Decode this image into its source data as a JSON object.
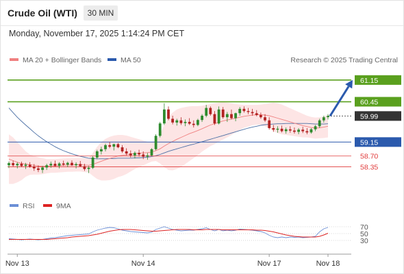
{
  "header": {
    "title": "Crude Oil (WTI)",
    "timeframe": "30 MIN",
    "datetime": "Monday, November 17, 2025 1:14:24 PM CET"
  },
  "legend": {
    "ma20": "MA 20 + Bollinger Bands",
    "ma50": "MA 50",
    "credit": "Research © 2025 Trading Central"
  },
  "colors": {
    "resistance": "#5aa01e",
    "pivot": "#2b5aad",
    "support": "#e03a3a",
    "current": "#333333",
    "ma20": "#f08080",
    "ma50": "#4a6fa5",
    "band": "#fde0e0",
    "up": "#2e8b2e",
    "down": "#b22222",
    "arrow": "#2b5aad",
    "rsi": "#6b8fd6",
    "rsi_ma": "#dd2222"
  },
  "chart_data": [
    {
      "type": "candlestick",
      "title": "Crude Oil (WTI)",
      "timeframe": "30 MIN",
      "ylim": [
        57.7,
        61.5
      ],
      "x_labels": [
        "Nov 13",
        "Nov 14",
        "Nov 17",
        "Nov 18"
      ],
      "levels": [
        {
          "value": 61.15,
          "label": "61.15",
          "kind": "resistance"
        },
        {
          "value": 60.45,
          "label": "60.45",
          "kind": "resistance"
        },
        {
          "value": 59.99,
          "label": "59.99",
          "kind": "current"
        },
        {
          "value": 59.15,
          "label": "59.15",
          "kind": "pivot"
        },
        {
          "value": 58.7,
          "label": "58.70",
          "kind": "support"
        },
        {
          "value": 58.35,
          "label": "58.35",
          "kind": "support"
        }
      ],
      "target_arrow": {
        "from": 59.99,
        "to": 61.15
      },
      "candles": [
        [
          58.4,
          58.52,
          58.31,
          58.47
        ],
        [
          58.47,
          58.55,
          58.36,
          58.4
        ],
        [
          58.4,
          58.5,
          58.3,
          58.45
        ],
        [
          58.45,
          58.52,
          58.34,
          58.38
        ],
        [
          58.38,
          58.48,
          58.28,
          58.42
        ],
        [
          58.42,
          58.5,
          58.32,
          58.36
        ],
        [
          58.36,
          58.44,
          58.22,
          58.3
        ],
        [
          58.3,
          58.4,
          58.18,
          58.25
        ],
        [
          58.25,
          58.38,
          58.15,
          58.33
        ],
        [
          58.33,
          58.45,
          58.25,
          58.4
        ],
        [
          58.4,
          58.52,
          58.32,
          58.45
        ],
        [
          58.45,
          58.55,
          58.36,
          58.38
        ],
        [
          58.38,
          58.5,
          58.3,
          58.46
        ],
        [
          58.46,
          58.55,
          58.38,
          58.42
        ],
        [
          58.42,
          58.52,
          58.34,
          58.48
        ],
        [
          58.48,
          58.56,
          58.38,
          58.4
        ],
        [
          58.4,
          58.5,
          58.3,
          58.44
        ],
        [
          58.44,
          58.54,
          58.36,
          58.37
        ],
        [
          58.37,
          58.45,
          58.22,
          58.28
        ],
        [
          58.28,
          58.38,
          58.15,
          58.32
        ],
        [
          58.32,
          58.7,
          58.28,
          58.65
        ],
        [
          58.65,
          58.9,
          58.6,
          58.85
        ],
        [
          58.85,
          59.0,
          58.75,
          58.92
        ],
        [
          58.92,
          59.1,
          58.85,
          59.05
        ],
        [
          59.05,
          59.15,
          58.95,
          59.0
        ],
        [
          59.0,
          59.1,
          58.88,
          59.08
        ],
        [
          59.08,
          59.12,
          58.95,
          58.98
        ],
        [
          58.98,
          59.05,
          58.8,
          58.85
        ],
        [
          58.85,
          58.95,
          58.72,
          58.78
        ],
        [
          58.78,
          58.88,
          58.65,
          58.72
        ],
        [
          58.72,
          58.85,
          58.62,
          58.8
        ],
        [
          58.8,
          58.9,
          58.68,
          58.75
        ],
        [
          58.75,
          58.85,
          58.6,
          58.68
        ],
        [
          58.68,
          58.8,
          58.58,
          58.72
        ],
        [
          58.72,
          58.95,
          58.7,
          58.92
        ],
        [
          58.92,
          59.4,
          58.88,
          59.35
        ],
        [
          59.35,
          59.8,
          59.3,
          59.75
        ],
        [
          59.75,
          60.4,
          59.7,
          60.2
        ],
        [
          60.2,
          60.3,
          59.85,
          59.9
        ],
        [
          59.9,
          60.0,
          59.72,
          59.78
        ],
        [
          59.78,
          59.9,
          59.68,
          59.85
        ],
        [
          59.85,
          59.95,
          59.7,
          59.76
        ],
        [
          59.76,
          59.88,
          59.66,
          59.8
        ],
        [
          59.8,
          59.92,
          59.7,
          59.74
        ],
        [
          59.74,
          59.85,
          59.62,
          59.7
        ],
        [
          59.7,
          59.9,
          59.66,
          59.86
        ],
        [
          59.86,
          60.05,
          59.8,
          60.0
        ],
        [
          60.0,
          60.35,
          59.95,
          60.25
        ],
        [
          60.25,
          60.3,
          60.0,
          60.05
        ],
        [
          60.05,
          60.15,
          59.7,
          59.75
        ],
        [
          59.75,
          60.3,
          59.72,
          60.2
        ],
        [
          60.2,
          60.28,
          59.9,
          59.95
        ],
        [
          59.95,
          60.12,
          59.8,
          60.05
        ],
        [
          60.05,
          60.2,
          59.88,
          59.92
        ],
        [
          59.92,
          60.1,
          59.82,
          60.08
        ],
        [
          60.08,
          60.28,
          60.0,
          60.22
        ],
        [
          60.22,
          60.3,
          60.1,
          60.15
        ],
        [
          60.15,
          60.25,
          60.05,
          60.12
        ],
        [
          60.12,
          60.22,
          60.0,
          60.08
        ],
        [
          60.08,
          60.18,
          59.98,
          60.02
        ],
        [
          60.02,
          60.1,
          59.9,
          59.95
        ],
        [
          59.95,
          60.05,
          59.8,
          59.85
        ],
        [
          59.85,
          59.95,
          59.55,
          59.6
        ],
        [
          59.6,
          59.7,
          59.48,
          59.55
        ],
        [
          59.55,
          59.66,
          59.45,
          59.58
        ],
        [
          59.58,
          59.68,
          59.46,
          59.5
        ],
        [
          59.5,
          59.62,
          59.42,
          59.56
        ],
        [
          59.56,
          59.66,
          59.45,
          59.52
        ],
        [
          59.52,
          59.62,
          59.42,
          59.48
        ],
        [
          59.48,
          59.6,
          59.4,
          59.55
        ],
        [
          59.55,
          59.64,
          59.44,
          59.5
        ],
        [
          59.5,
          59.6,
          59.4,
          59.46
        ],
        [
          59.46,
          59.6,
          59.42,
          59.56
        ],
        [
          59.56,
          59.7,
          59.5,
          59.66
        ],
        [
          59.66,
          59.9,
          59.6,
          59.85
        ],
        [
          59.85,
          60.0,
          59.78,
          59.95
        ],
        [
          59.95,
          60.05,
          59.88,
          59.99
        ]
      ],
      "ma20": [
        58.6,
        58.55,
        58.5,
        58.46,
        58.44,
        58.42,
        58.4,
        58.38,
        58.37,
        58.37,
        58.38,
        58.38,
        58.39,
        58.4,
        58.41,
        58.41,
        58.42,
        58.42,
        58.41,
        58.4,
        58.43,
        58.48,
        58.53,
        58.58,
        58.62,
        58.66,
        58.7,
        58.72,
        58.74,
        58.76,
        58.78,
        58.79,
        58.8,
        58.81,
        58.83,
        58.87,
        58.93,
        59.02,
        59.1,
        59.17,
        59.24,
        59.3,
        59.36,
        59.42,
        59.47,
        59.52,
        59.58,
        59.64,
        59.7,
        59.74,
        59.79,
        59.83,
        59.86,
        59.89,
        59.92,
        59.95,
        59.98,
        60.0,
        60.02,
        60.03,
        60.03,
        60.02,
        60.0,
        59.96,
        59.92,
        59.88,
        59.84,
        59.8,
        59.76,
        59.72,
        59.68,
        59.65,
        59.62,
        59.6,
        59.61,
        59.63,
        59.66
      ],
      "bb_upper": [
        59.4,
        59.3,
        59.15,
        59.0,
        58.85,
        58.75,
        58.7,
        58.66,
        58.63,
        58.6,
        58.6,
        58.6,
        58.61,
        58.62,
        58.63,
        58.63,
        58.64,
        58.64,
        58.64,
        58.63,
        58.8,
        59.0,
        59.15,
        59.25,
        59.32,
        59.36,
        59.38,
        59.38,
        59.36,
        59.32,
        59.28,
        59.24,
        59.2,
        59.16,
        59.14,
        59.2,
        59.4,
        59.7,
        59.95,
        60.1,
        60.2,
        60.25,
        60.28,
        60.3,
        60.31,
        60.31,
        60.32,
        60.35,
        60.38,
        60.4,
        60.42,
        60.43,
        60.42,
        60.4,
        60.38,
        60.36,
        60.35,
        60.35,
        60.35,
        60.35,
        60.36,
        60.38,
        60.4,
        60.42,
        60.4,
        60.36,
        60.3,
        60.24,
        60.18,
        60.12,
        60.06,
        60.0,
        59.96,
        59.94,
        59.95,
        59.98,
        60.02
      ],
      "bb_lower": [
        57.8,
        57.8,
        57.85,
        57.92,
        58.03,
        58.09,
        58.1,
        58.1,
        58.11,
        58.14,
        58.16,
        58.16,
        58.17,
        58.18,
        58.19,
        58.19,
        58.2,
        58.2,
        58.18,
        58.17,
        58.06,
        57.96,
        57.91,
        57.91,
        57.92,
        57.96,
        58.02,
        58.06,
        58.12,
        58.2,
        58.28,
        58.34,
        58.4,
        58.46,
        58.52,
        58.54,
        58.46,
        58.34,
        58.25,
        58.24,
        58.28,
        58.35,
        58.44,
        58.54,
        58.63,
        58.73,
        58.84,
        58.93,
        59.02,
        59.08,
        59.16,
        59.23,
        59.3,
        59.38,
        59.46,
        59.54,
        59.61,
        59.65,
        59.69,
        59.71,
        59.7,
        59.66,
        59.6,
        59.5,
        59.44,
        59.4,
        59.38,
        59.36,
        59.34,
        59.32,
        59.3,
        59.3,
        59.28,
        59.26,
        59.27,
        59.28,
        59.3
      ],
      "ma50": [
        60.25,
        60.1,
        59.95,
        59.82,
        59.7,
        59.58,
        59.46,
        59.35,
        59.25,
        59.16,
        59.08,
        59.0,
        58.93,
        58.87,
        58.82,
        58.77,
        58.73,
        58.69,
        58.66,
        58.63,
        58.62,
        58.61,
        58.61,
        58.61,
        58.62,
        58.62,
        58.63,
        58.63,
        58.63,
        58.63,
        58.64,
        58.64,
        58.65,
        58.66,
        58.68,
        58.71,
        58.75,
        58.8,
        58.85,
        58.89,
        58.93,
        58.97,
        59.01,
        59.05,
        59.08,
        59.12,
        59.16,
        59.2,
        59.24,
        59.28,
        59.32,
        59.36,
        59.4,
        59.44,
        59.48,
        59.52,
        59.56,
        59.6,
        59.63,
        59.66,
        59.69,
        59.71,
        59.72,
        59.73,
        59.74,
        59.74,
        59.75,
        59.75,
        59.75,
        59.75,
        59.75,
        59.75,
        59.74,
        59.73,
        59.73,
        59.73,
        59.74
      ]
    },
    {
      "type": "line",
      "series": [
        {
          "name": "RSI"
        },
        {
          "name": "9MA"
        }
      ],
      "ylim": [
        0,
        100
      ],
      "y_ticks": [
        70,
        50,
        30
      ],
      "rsi": [
        35,
        34,
        33,
        32,
        33,
        34,
        33,
        32,
        33,
        35,
        37,
        38,
        40,
        42,
        44,
        45,
        46,
        47,
        48,
        49,
        55,
        60,
        63,
        66,
        68,
        67,
        64,
        60,
        58,
        56,
        55,
        54,
        53,
        52,
        54,
        62,
        66,
        70,
        66,
        62,
        60,
        58,
        59,
        60,
        60,
        62,
        64,
        67,
        62,
        58,
        62,
        58,
        60,
        58,
        60,
        63,
        62,
        61,
        60,
        58,
        56,
        52,
        45,
        40,
        38,
        40,
        38,
        40,
        39,
        40,
        38,
        39,
        40,
        42,
        55,
        64,
        68
      ],
      "rsi_ma": [
        33,
        33,
        33,
        33,
        33,
        33,
        33,
        33,
        33,
        33,
        34,
        35,
        36,
        37,
        38,
        40,
        41,
        42,
        43,
        44,
        46,
        48,
        51,
        54,
        57,
        59,
        61,
        62,
        62,
        62,
        61,
        60,
        59,
        58,
        57,
        57,
        58,
        59,
        60,
        61,
        62,
        62,
        62,
        62,
        61,
        61,
        61,
        62,
        62,
        62,
        62,
        61,
        61,
        61,
        61,
        61,
        61,
        61,
        61,
        60,
        60,
        59,
        57,
        55,
        52,
        49,
        46,
        44,
        42,
        41,
        40,
        40,
        40,
        40,
        42,
        46,
        51
      ]
    }
  ]
}
